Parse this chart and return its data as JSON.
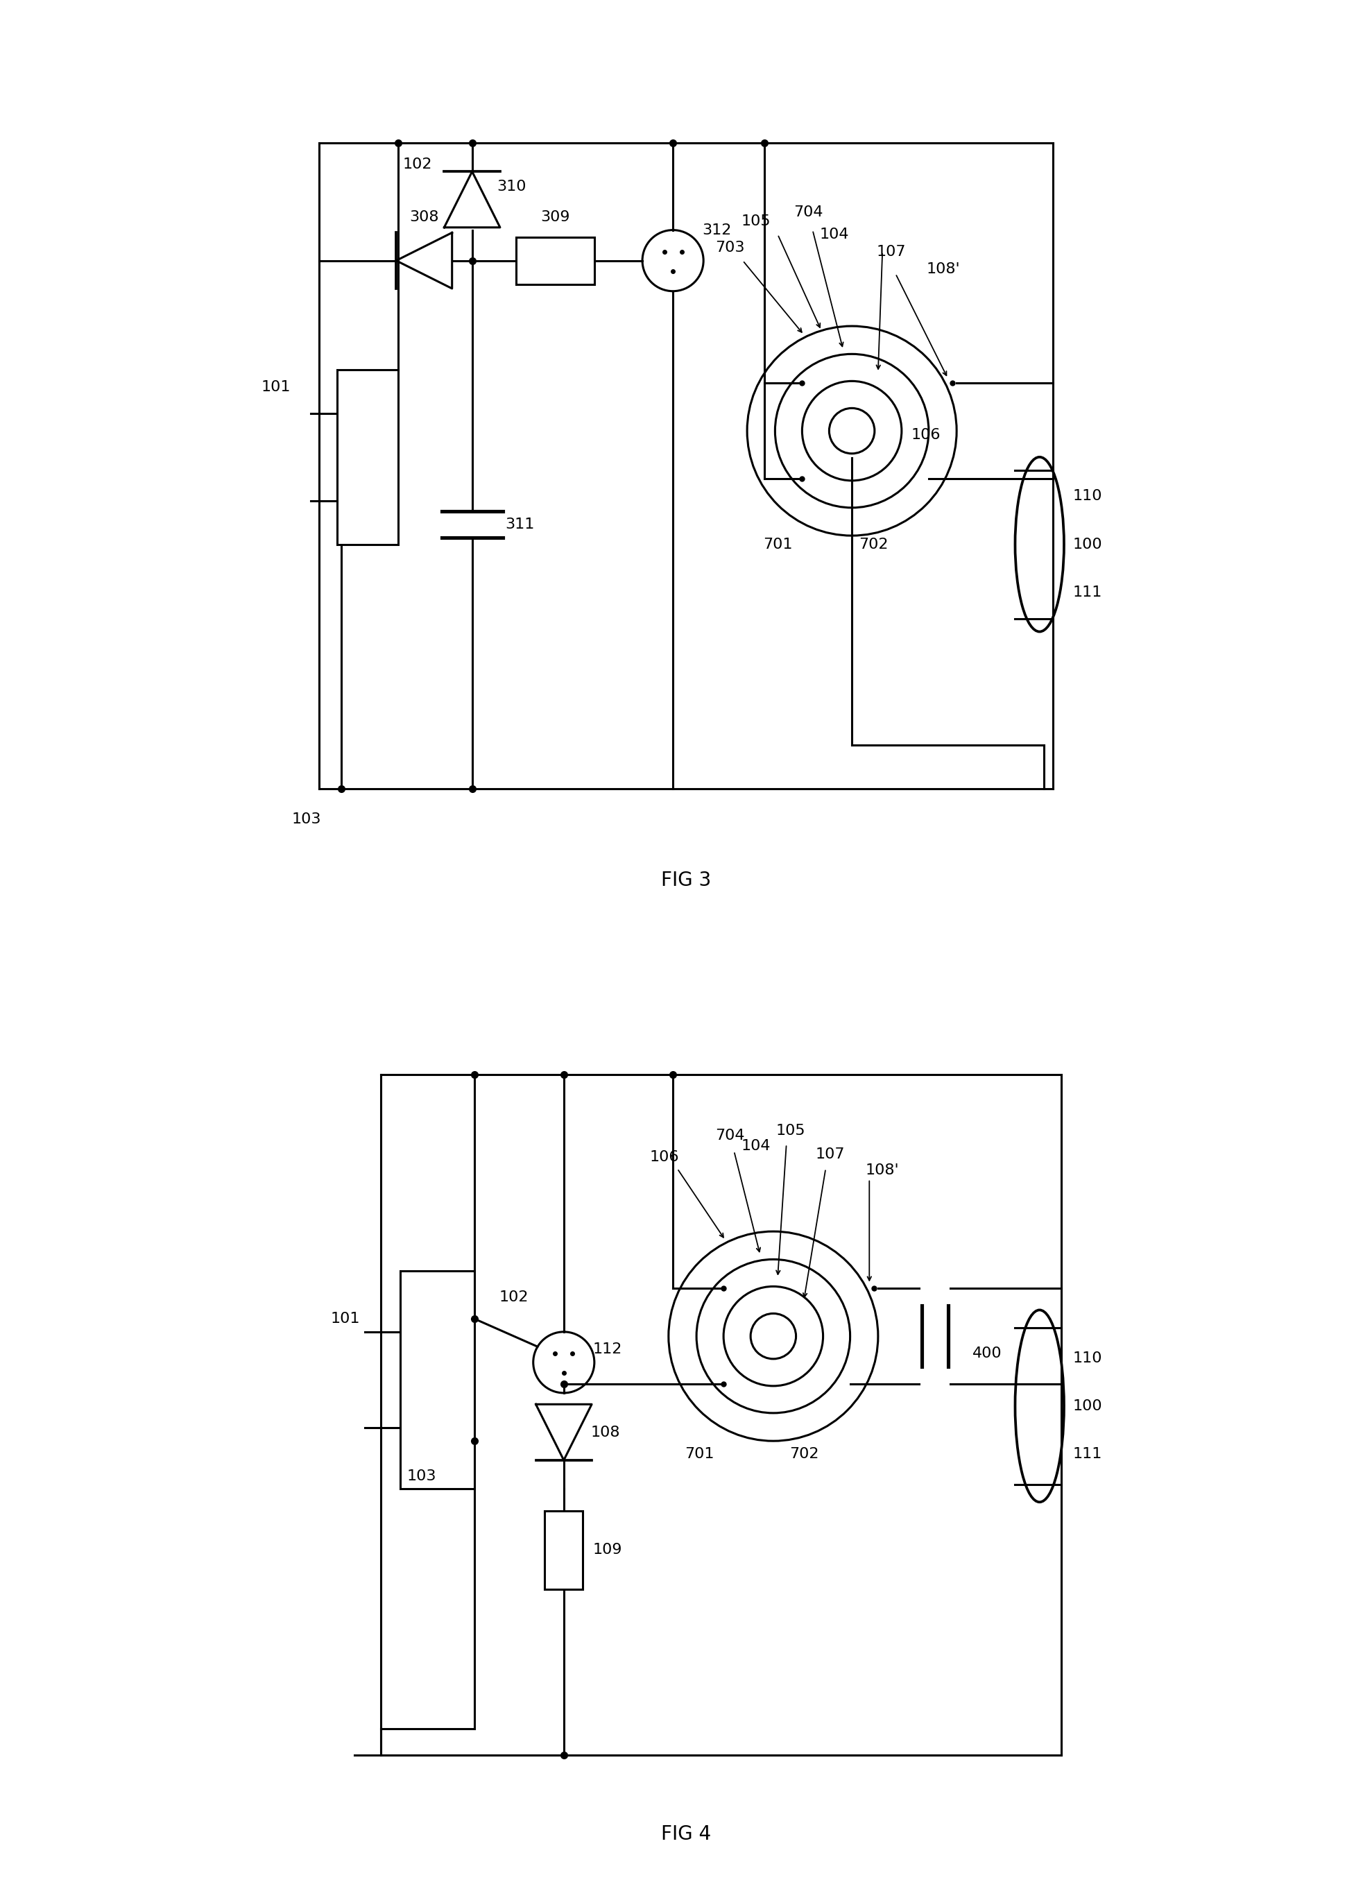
{
  "fig_width": 19.78,
  "fig_height": 27.36,
  "background_color": "#ffffff",
  "line_color": "#000000",
  "line_width": 2.2,
  "font_size_label": 16,
  "font_size_fig": 20,
  "fig3_title": "FIG 3",
  "fig4_title": "FIG 4"
}
